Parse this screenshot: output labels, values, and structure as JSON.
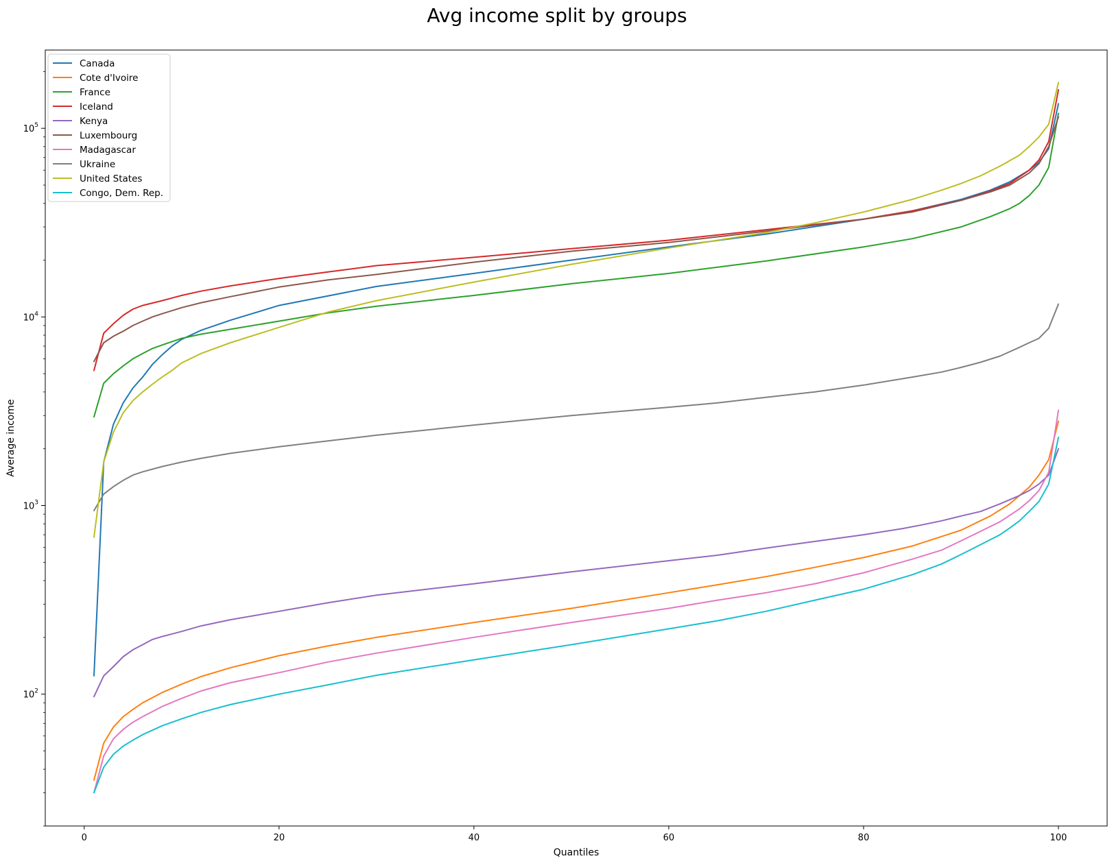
{
  "chart_data": {
    "type": "line",
    "title": "Avg income split by groups",
    "xlabel": "Quantiles",
    "ylabel": "Average income",
    "xlim": [
      -4,
      105
    ],
    "ylim": [
      20,
      260000
    ],
    "yscale": "log",
    "x_ticks": [
      0,
      20,
      40,
      60,
      80,
      100
    ],
    "x_tick_labels": [
      "0",
      "20",
      "40",
      "60",
      "80",
      "100"
    ],
    "y_ticks": [
      100,
      1000,
      10000,
      100000
    ],
    "y_tick_labels": [
      {
        "base": "10",
        "exp": "2"
      },
      {
        "base": "10",
        "exp": "3"
      },
      {
        "base": "10",
        "exp": "4"
      },
      {
        "base": "10",
        "exp": "5"
      }
    ],
    "grid": false,
    "legend_position": "upper-left",
    "series": [
      {
        "name": "Canada",
        "color": "#1f77b4",
        "points": [
          [
            1,
            125
          ],
          [
            2,
            1700
          ],
          [
            3,
            2700
          ],
          [
            4,
            3500
          ],
          [
            5,
            4200
          ],
          [
            6,
            4800
          ],
          [
            7,
            5600
          ],
          [
            8,
            6300
          ],
          [
            9,
            7000
          ],
          [
            10,
            7600
          ],
          [
            12,
            8500
          ],
          [
            15,
            9600
          ],
          [
            20,
            11500
          ],
          [
            30,
            14500
          ],
          [
            40,
            17000
          ],
          [
            50,
            20000
          ],
          [
            60,
            23500
          ],
          [
            70,
            27500
          ],
          [
            80,
            33000
          ],
          [
            85,
            36500
          ],
          [
            90,
            42000
          ],
          [
            93,
            47000
          ],
          [
            95,
            52000
          ],
          [
            97,
            60000
          ],
          [
            98,
            66000
          ],
          [
            99,
            78000
          ],
          [
            100,
            135000
          ]
        ]
      },
      {
        "name": "Cote d'Ivoire",
        "color": "#ff7f0e",
        "points": [
          [
            1,
            35
          ],
          [
            2,
            55
          ],
          [
            3,
            67
          ],
          [
            4,
            76
          ],
          [
            5,
            83
          ],
          [
            6,
            90
          ],
          [
            8,
            102
          ],
          [
            10,
            113
          ],
          [
            12,
            124
          ],
          [
            15,
            138
          ],
          [
            20,
            160
          ],
          [
            25,
            180
          ],
          [
            30,
            200
          ],
          [
            40,
            240
          ],
          [
            50,
            285
          ],
          [
            60,
            345
          ],
          [
            65,
            380
          ],
          [
            70,
            420
          ],
          [
            75,
            470
          ],
          [
            80,
            530
          ],
          [
            85,
            610
          ],
          [
            90,
            740
          ],
          [
            93,
            880
          ],
          [
            95,
            1020
          ],
          [
            97,
            1250
          ],
          [
            98,
            1450
          ],
          [
            99,
            1750
          ],
          [
            100,
            2800
          ]
        ]
      },
      {
        "name": "France",
        "color": "#2ca02c",
        "points": [
          [
            1,
            2950
          ],
          [
            2,
            4450
          ],
          [
            3,
            5000
          ],
          [
            4,
            5500
          ],
          [
            5,
            6000
          ],
          [
            6,
            6400
          ],
          [
            7,
            6800
          ],
          [
            8,
            7100
          ],
          [
            10,
            7700
          ],
          [
            12,
            8100
          ],
          [
            15,
            8600
          ],
          [
            20,
            9500
          ],
          [
            25,
            10500
          ],
          [
            30,
            11400
          ],
          [
            40,
            13000
          ],
          [
            50,
            15000
          ],
          [
            60,
            17000
          ],
          [
            70,
            19800
          ],
          [
            80,
            23500
          ],
          [
            85,
            26000
          ],
          [
            90,
            30000
          ],
          [
            93,
            34000
          ],
          [
            95,
            37500
          ],
          [
            96,
            40000
          ],
          [
            97,
            44000
          ],
          [
            98,
            50000
          ],
          [
            99,
            62000
          ],
          [
            100,
            120000
          ]
        ]
      },
      {
        "name": "Iceland",
        "color": "#d62728",
        "points": [
          [
            1,
            5200
          ],
          [
            2,
            8200
          ],
          [
            3,
            9200
          ],
          [
            4,
            10200
          ],
          [
            5,
            11000
          ],
          [
            6,
            11500
          ],
          [
            8,
            12200
          ],
          [
            10,
            13000
          ],
          [
            12,
            13700
          ],
          [
            15,
            14600
          ],
          [
            20,
            16000
          ],
          [
            25,
            17300
          ],
          [
            30,
            18700
          ],
          [
            40,
            20700
          ],
          [
            50,
            23000
          ],
          [
            60,
            25500
          ],
          [
            70,
            29000
          ],
          [
            80,
            33000
          ],
          [
            85,
            36500
          ],
          [
            90,
            41500
          ],
          [
            93,
            46500
          ],
          [
            95,
            51000
          ],
          [
            97,
            60000
          ],
          [
            98,
            68000
          ],
          [
            99,
            85000
          ],
          [
            100,
            160000
          ]
        ]
      },
      {
        "name": "Kenya",
        "color": "#9467bd",
        "points": [
          [
            1,
            97
          ],
          [
            2,
            125
          ],
          [
            3,
            140
          ],
          [
            4,
            158
          ],
          [
            5,
            172
          ],
          [
            6,
            183
          ],
          [
            7,
            195
          ],
          [
            8,
            202
          ],
          [
            10,
            215
          ],
          [
            12,
            230
          ],
          [
            15,
            248
          ],
          [
            20,
            275
          ],
          [
            25,
            305
          ],
          [
            30,
            335
          ],
          [
            40,
            385
          ],
          [
            50,
            445
          ],
          [
            60,
            510
          ],
          [
            65,
            545
          ],
          [
            70,
            595
          ],
          [
            75,
            645
          ],
          [
            80,
            700
          ],
          [
            84,
            755
          ],
          [
            86,
            790
          ],
          [
            88,
            830
          ],
          [
            90,
            880
          ],
          [
            92,
            930
          ],
          [
            94,
            1020
          ],
          [
            96,
            1130
          ],
          [
            97,
            1200
          ],
          [
            98,
            1300
          ],
          [
            99,
            1450
          ],
          [
            100,
            2000
          ]
        ]
      },
      {
        "name": "Luxembourg",
        "color": "#8c564b",
        "points": [
          [
            1,
            5800
          ],
          [
            2,
            7300
          ],
          [
            3,
            7900
          ],
          [
            4,
            8400
          ],
          [
            5,
            9000
          ],
          [
            6,
            9500
          ],
          [
            7,
            10000
          ],
          [
            8,
            10400
          ],
          [
            10,
            11200
          ],
          [
            12,
            11900
          ],
          [
            15,
            12800
          ],
          [
            20,
            14400
          ],
          [
            25,
            15700
          ],
          [
            30,
            16800
          ],
          [
            40,
            19500
          ],
          [
            50,
            22300
          ],
          [
            60,
            24800
          ],
          [
            70,
            28500
          ],
          [
            80,
            33000
          ],
          [
            85,
            36000
          ],
          [
            90,
            41500
          ],
          [
            93,
            46000
          ],
          [
            95,
            50000
          ],
          [
            97,
            58000
          ],
          [
            98,
            65000
          ],
          [
            99,
            80000
          ],
          [
            100,
            115000
          ]
        ]
      },
      {
        "name": "Madagascar",
        "color": "#e377c2",
        "points": [
          [
            1,
            30
          ],
          [
            2,
            47
          ],
          [
            3,
            58
          ],
          [
            4,
            65
          ],
          [
            5,
            71
          ],
          [
            6,
            76
          ],
          [
            8,
            86
          ],
          [
            10,
            95
          ],
          [
            12,
            104
          ],
          [
            15,
            115
          ],
          [
            20,
            130
          ],
          [
            25,
            148
          ],
          [
            30,
            165
          ],
          [
            40,
            200
          ],
          [
            50,
            240
          ],
          [
            60,
            285
          ],
          [
            65,
            315
          ],
          [
            70,
            345
          ],
          [
            75,
            385
          ],
          [
            80,
            440
          ],
          [
            85,
            520
          ],
          [
            88,
            580
          ],
          [
            90,
            650
          ],
          [
            92,
            730
          ],
          [
            94,
            820
          ],
          [
            96,
            960
          ],
          [
            97,
            1060
          ],
          [
            98,
            1200
          ],
          [
            99,
            1500
          ],
          [
            100,
            3200
          ]
        ]
      },
      {
        "name": "Ukraine",
        "color": "#7f7f7f",
        "points": [
          [
            1,
            940
          ],
          [
            2,
            1150
          ],
          [
            3,
            1260
          ],
          [
            4,
            1360
          ],
          [
            5,
            1450
          ],
          [
            6,
            1510
          ],
          [
            8,
            1610
          ],
          [
            10,
            1700
          ],
          [
            12,
            1780
          ],
          [
            15,
            1890
          ],
          [
            20,
            2050
          ],
          [
            25,
            2200
          ],
          [
            30,
            2360
          ],
          [
            40,
            2670
          ],
          [
            50,
            3000
          ],
          [
            60,
            3320
          ],
          [
            65,
            3500
          ],
          [
            70,
            3750
          ],
          [
            75,
            4000
          ],
          [
            80,
            4350
          ],
          [
            85,
            4800
          ],
          [
            88,
            5100
          ],
          [
            90,
            5400
          ],
          [
            92,
            5750
          ],
          [
            94,
            6200
          ],
          [
            96,
            6900
          ],
          [
            97,
            7300
          ],
          [
            98,
            7700
          ],
          [
            99,
            8700
          ],
          [
            100,
            11700
          ]
        ]
      },
      {
        "name": "United States",
        "color": "#bcbd22",
        "points": [
          [
            1,
            680
          ],
          [
            2,
            1700
          ],
          [
            3,
            2450
          ],
          [
            4,
            3100
          ],
          [
            5,
            3600
          ],
          [
            6,
            4000
          ],
          [
            7,
            4400
          ],
          [
            8,
            4800
          ],
          [
            9,
            5200
          ],
          [
            10,
            5700
          ],
          [
            12,
            6400
          ],
          [
            15,
            7300
          ],
          [
            20,
            8800
          ],
          [
            25,
            10600
          ],
          [
            30,
            12200
          ],
          [
            40,
            15300
          ],
          [
            50,
            19000
          ],
          [
            60,
            23200
          ],
          [
            70,
            28000
          ],
          [
            75,
            31500
          ],
          [
            80,
            36000
          ],
          [
            85,
            42000
          ],
          [
            88,
            47000
          ],
          [
            90,
            51000
          ],
          [
            92,
            56000
          ],
          [
            94,
            63000
          ],
          [
            96,
            72000
          ],
          [
            97,
            80000
          ],
          [
            98,
            90000
          ],
          [
            99,
            105000
          ],
          [
            100,
            175000
          ]
        ]
      },
      {
        "name": "Congo, Dem. Rep.",
        "color": "#17becf",
        "points": [
          [
            1,
            30
          ],
          [
            2,
            41
          ],
          [
            3,
            48
          ],
          [
            4,
            53
          ],
          [
            5,
            57
          ],
          [
            6,
            61
          ],
          [
            8,
            68
          ],
          [
            10,
            74
          ],
          [
            12,
            80
          ],
          [
            15,
            88
          ],
          [
            20,
            100
          ],
          [
            25,
            112
          ],
          [
            30,
            126
          ],
          [
            40,
            152
          ],
          [
            50,
            183
          ],
          [
            60,
            222
          ],
          [
            65,
            245
          ],
          [
            70,
            275
          ],
          [
            75,
            315
          ],
          [
            80,
            360
          ],
          [
            85,
            430
          ],
          [
            88,
            490
          ],
          [
            90,
            550
          ],
          [
            92,
            620
          ],
          [
            94,
            700
          ],
          [
            95,
            760
          ],
          [
            96,
            830
          ],
          [
            97,
            930
          ],
          [
            98,
            1050
          ],
          [
            99,
            1300
          ],
          [
            100,
            2300
          ]
        ]
      }
    ]
  }
}
